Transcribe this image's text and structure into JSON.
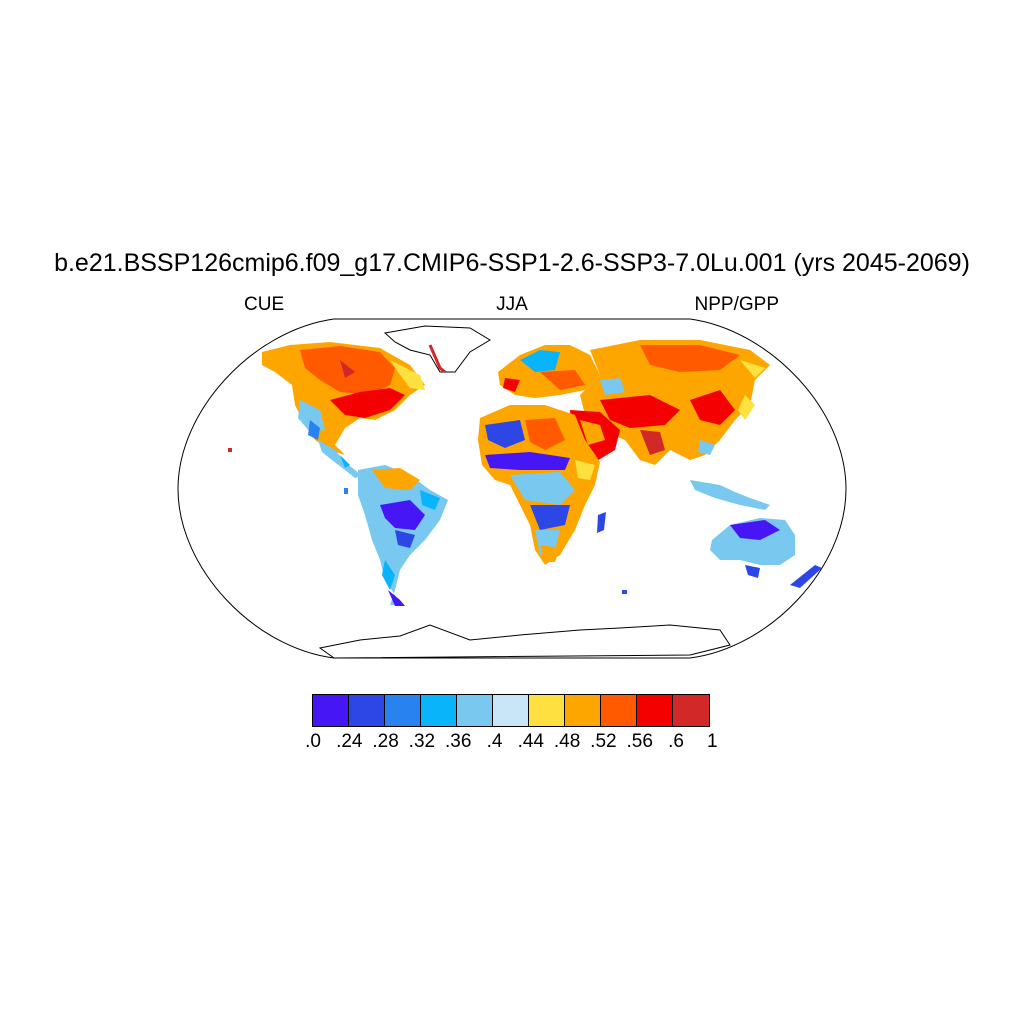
{
  "title": "b.e21.BSSP126cmip6.f09_g17.CMIP6-SSP1-2.6-SSP3-7.0Lu.001 (yrs 2045-2069)",
  "left_label": "CUE",
  "center_label": "JJA",
  "right_label": "NPP/GPP",
  "colorbar": {
    "colors": [
      "#4616f5",
      "#2d46e6",
      "#2882f0",
      "#0ab4fa",
      "#78c8f0",
      "#c8e6f8",
      "#fee140",
      "#fea600",
      "#ff5a00",
      "#f50000",
      "#d22828"
    ],
    "labels": [
      ".0",
      ".24",
      ".28",
      ".32",
      ".36",
      ".4",
      ".44",
      ".48",
      ".52",
      ".56",
      ".6",
      "1"
    ]
  },
  "map": {
    "projection": "Robinson",
    "field": "CUE (NPP/GPP)",
    "season": "JJA"
  }
}
